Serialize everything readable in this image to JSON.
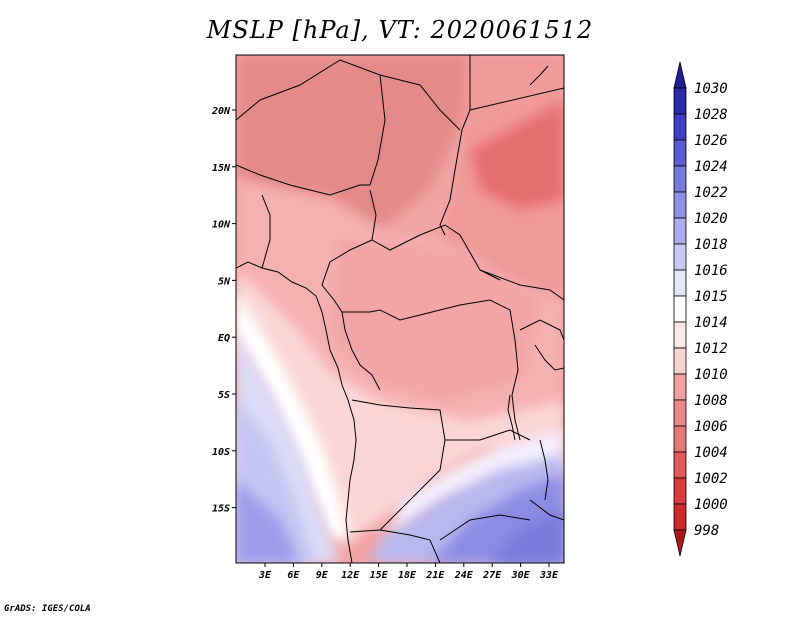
{
  "title": "MSLP [hPa], VT: 2020061512",
  "footer": "GrADS: IGES/COLA",
  "lat_ticks": [
    "20N",
    "15N",
    "10N",
    "5N",
    "EQ",
    "5S",
    "10S",
    "15S"
  ],
  "lon_ticks": [
    "3E",
    "6E",
    "9E",
    "12E",
    "15E",
    "18E",
    "21E",
    "24E",
    "27E",
    "30E",
    "33E"
  ],
  "colorbar": {
    "levels": [
      "998",
      "1000",
      "1002",
      "1004",
      "1006",
      "1008",
      "1010",
      "1012",
      "1014",
      "1015",
      "1016",
      "1018",
      "1020",
      "1022",
      "1024",
      "1026",
      "1028",
      "1030"
    ],
    "colors": [
      "#b01818",
      "#cc2a2a",
      "#dc3c3c",
      "#e45a5a",
      "#e67878",
      "#e88888",
      "#f0a0a0",
      "#fad2d2",
      "#fde8e8",
      "#ffffff",
      "#e6e6fa",
      "#c8c8f5",
      "#aaaaee",
      "#9090e6",
      "#7a7ade",
      "#5c5cd2",
      "#3e3ec4",
      "#2a2aaa",
      "#1e1e96"
    ]
  },
  "legend_colors": {
    "red_range": "#e88888",
    "neutral": "#ffffff",
    "blue_range": "#aaaaee"
  }
}
